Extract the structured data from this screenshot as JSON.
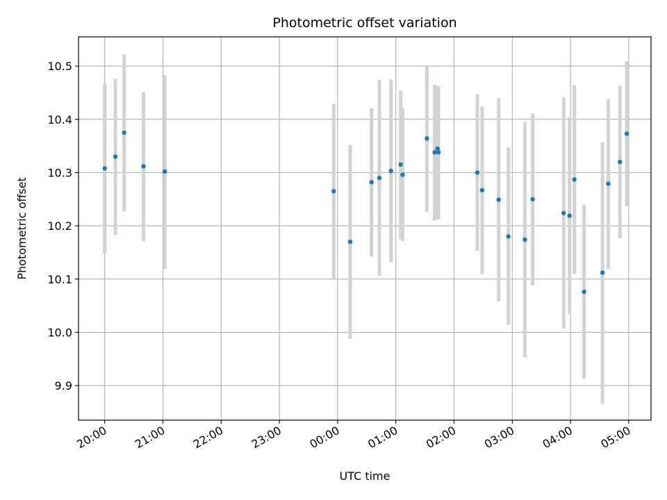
{
  "chart_data": {
    "type": "scatter",
    "title": "Photometric offset variation",
    "xlabel": "UTC time",
    "ylabel": "Photometric offset",
    "grid": true,
    "xlim": [
      "19:33",
      "05:23"
    ],
    "ylim": [
      9.835,
      10.555
    ],
    "x_ticks": [
      "20:00",
      "21:00",
      "22:00",
      "23:00",
      "00:00",
      "01:00",
      "02:00",
      "03:00",
      "04:00",
      "05:00"
    ],
    "y_ticks": [
      9.9,
      10.0,
      10.1,
      10.2,
      10.3,
      10.4,
      10.5
    ],
    "y_tick_labels": [
      "9.9",
      "10.0",
      "10.1",
      "10.2",
      "10.3",
      "10.4",
      "10.5"
    ],
    "colors": {
      "point": "#1f77b4",
      "errorbar": "#d3d3d3",
      "grid": "#b0b0b0"
    },
    "series": [
      {
        "points": [
          {
            "x": "20:00",
            "y": 10.308,
            "lo": 10.148,
            "hi": 10.467
          },
          {
            "x": "20:11",
            "y": 10.33,
            "lo": 10.183,
            "hi": 10.476
          },
          {
            "x": "20:20",
            "y": 10.375,
            "lo": 10.227,
            "hi": 10.522
          },
          {
            "x": "20:40",
            "y": 10.312,
            "lo": 10.171,
            "hi": 10.451
          },
          {
            "x": "21:02",
            "y": 10.302,
            "lo": 10.119,
            "hi": 10.483
          },
          {
            "x": "23:56",
            "y": 10.265,
            "lo": 10.1,
            "hi": 10.429
          },
          {
            "x": "00:13",
            "y": 10.17,
            "lo": 9.988,
            "hi": 10.352
          },
          {
            "x": "00:35",
            "y": 10.282,
            "lo": 10.142,
            "hi": 10.421
          },
          {
            "x": "00:43",
            "y": 10.29,
            "lo": 10.106,
            "hi": 10.474
          },
          {
            "x": "00:55",
            "y": 10.303,
            "lo": 10.132,
            "hi": 10.475
          },
          {
            "x": "01:05",
            "y": 10.315,
            "lo": 10.175,
            "hi": 10.454
          },
          {
            "x": "01:07",
            "y": 10.296,
            "lo": 10.171,
            "hi": 10.421
          },
          {
            "x": "01:32",
            "y": 10.364,
            "lo": 10.226,
            "hi": 10.5
          },
          {
            "x": "01:40",
            "y": 10.338,
            "lo": 10.21,
            "hi": 10.465
          },
          {
            "x": "01:43",
            "y": 10.345,
            "lo": 10.212,
            "hi": 10.463
          },
          {
            "x": "01:44",
            "y": 10.338,
            "lo": 10.213,
            "hi": 10.462
          },
          {
            "x": "02:24",
            "y": 10.3,
            "lo": 10.153,
            "hi": 10.447
          },
          {
            "x": "02:29",
            "y": 10.267,
            "lo": 10.109,
            "hi": 10.424
          },
          {
            "x": "02:46",
            "y": 10.249,
            "lo": 10.058,
            "hi": 10.44
          },
          {
            "x": "02:56",
            "y": 10.18,
            "lo": 10.014,
            "hi": 10.347
          },
          {
            "x": "03:13",
            "y": 10.174,
            "lo": 9.953,
            "hi": 10.395
          },
          {
            "x": "03:21",
            "y": 10.25,
            "lo": 10.088,
            "hi": 10.411
          },
          {
            "x": "03:53",
            "y": 10.224,
            "lo": 10.007,
            "hi": 10.441
          },
          {
            "x": "03:59",
            "y": 10.219,
            "lo": 10.034,
            "hi": 10.404
          },
          {
            "x": "04:04",
            "y": 10.287,
            "lo": 10.11,
            "hi": 10.464
          },
          {
            "x": "04:14",
            "y": 10.076,
            "lo": 9.913,
            "hi": 10.24
          },
          {
            "x": "04:33",
            "y": 10.112,
            "lo": 9.866,
            "hi": 10.357
          },
          {
            "x": "04:39",
            "y": 10.279,
            "lo": 10.119,
            "hi": 10.438
          },
          {
            "x": "04:51",
            "y": 10.32,
            "lo": 10.177,
            "hi": 10.463
          },
          {
            "x": "04:58",
            "y": 10.373,
            "lo": 10.237,
            "hi": 10.509
          }
        ]
      }
    ]
  }
}
